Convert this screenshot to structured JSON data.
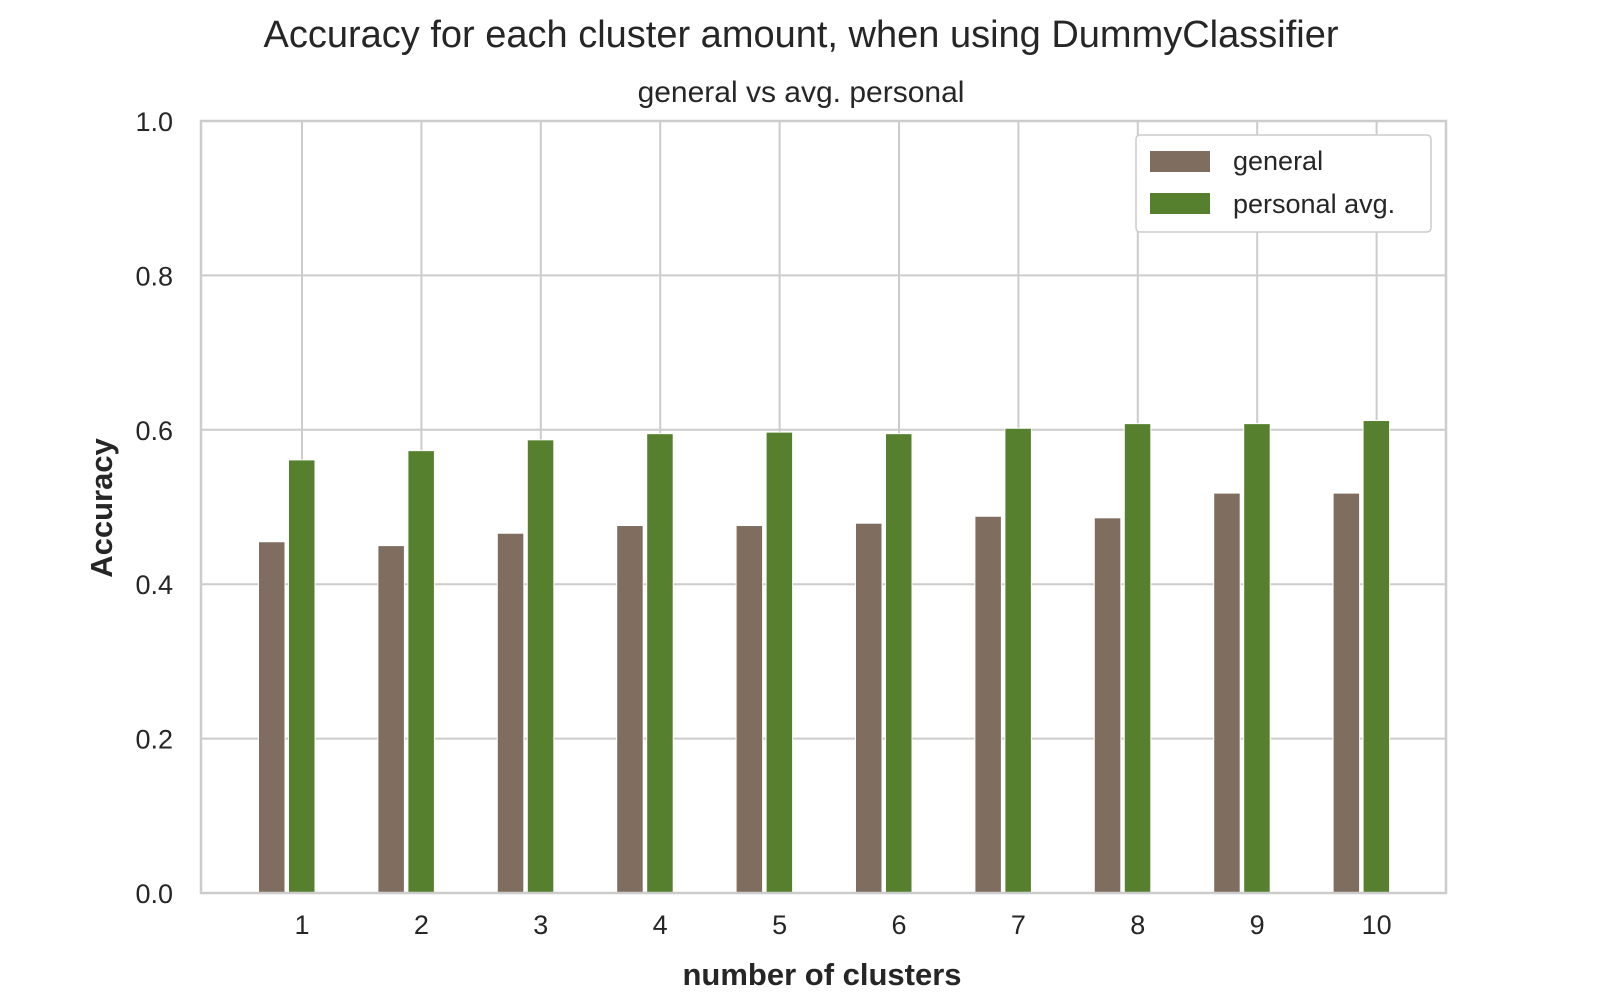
{
  "chart_data": {
    "type": "bar",
    "title": "Accuracy for each cluster amount, when using DummyClassifier",
    "subtitle": "general vs avg. personal",
    "xlabel": "number of clusters",
    "ylabel": "Accuracy",
    "categories": [
      "1",
      "2",
      "3",
      "4",
      "5",
      "6",
      "7",
      "8",
      "9",
      "10"
    ],
    "series": [
      {
        "name": "general",
        "color": "#7f6e5f",
        "values": [
          0.455,
          0.45,
          0.466,
          0.476,
          0.476,
          0.479,
          0.488,
          0.486,
          0.518,
          0.518
        ]
      },
      {
        "name": "personal avg.",
        "color": "#56802e",
        "values": [
          0.561,
          0.573,
          0.587,
          0.595,
          0.597,
          0.595,
          0.602,
          0.608,
          0.608,
          0.612
        ]
      }
    ],
    "ylim": [
      0,
      1.0
    ],
    "yticks": [
      "0.0",
      "0.2",
      "0.4",
      "0.6",
      "0.8",
      "1.0"
    ],
    "ytick_values": [
      0,
      0.2,
      0.4,
      0.6,
      0.8,
      1.0
    ],
    "grid": true,
    "legend_position": "top-right",
    "colors": {
      "grid": "#cccccc",
      "frame": "#cccccc",
      "text": "#262626"
    }
  }
}
